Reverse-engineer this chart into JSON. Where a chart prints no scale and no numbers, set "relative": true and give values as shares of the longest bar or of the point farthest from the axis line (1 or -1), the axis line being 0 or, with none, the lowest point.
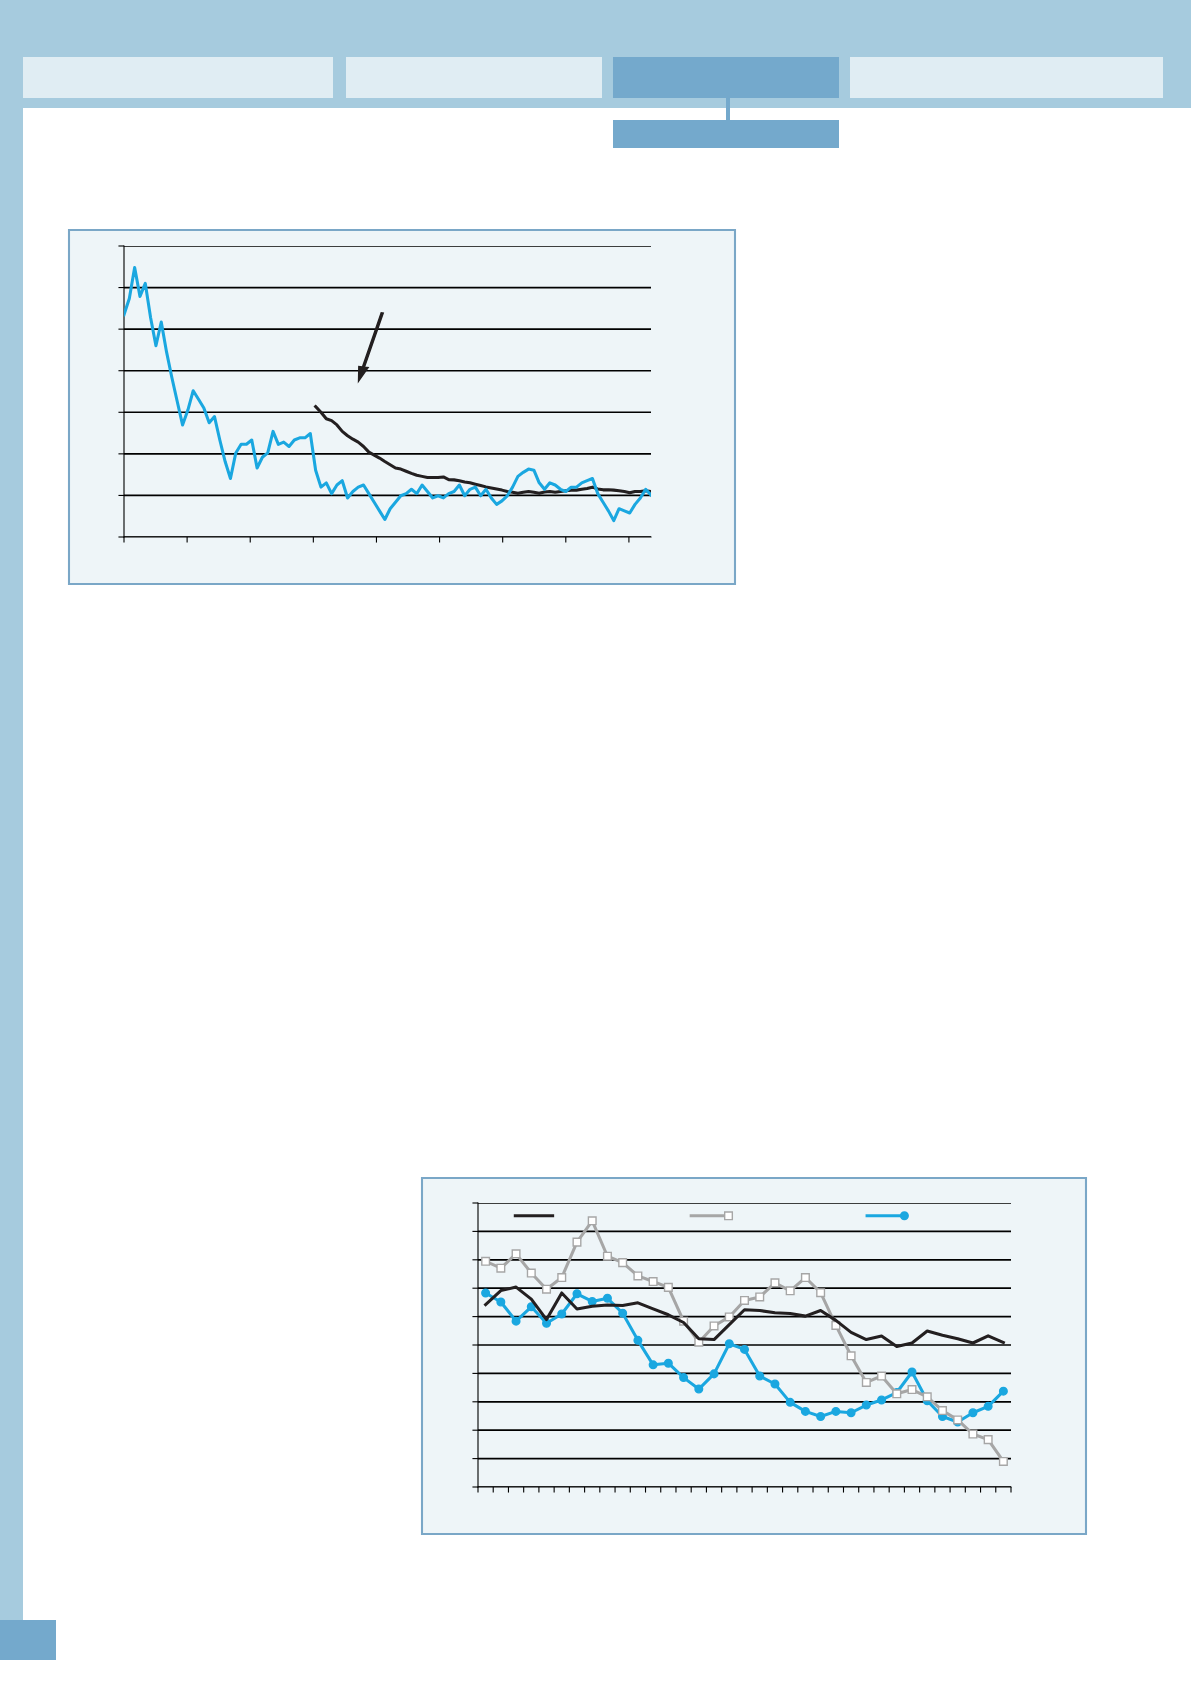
{
  "chart_data": [
    {
      "type": "line",
      "relative": true,
      "grid": "y",
      "tick_labels": false,
      "marker": "none",
      "line_style": "solid",
      "categories": [
        null,
        null,
        null,
        null,
        null,
        null,
        null,
        null,
        null,
        null,
        null,
        null,
        null,
        null,
        null,
        null,
        null,
        null,
        null,
        null,
        null,
        null,
        null,
        null,
        null,
        null,
        null,
        null,
        null,
        null,
        null,
        null,
        null,
        null,
        null,
        null,
        null,
        null,
        null,
        null,
        null,
        null,
        null,
        null,
        null,
        null,
        null,
        null,
        null,
        null,
        null,
        null,
        null,
        null,
        null,
        null,
        null,
        null,
        null,
        null,
        null,
        null,
        null,
        null,
        null,
        null,
        null,
        null,
        null,
        null,
        null,
        null,
        null,
        null,
        null,
        null,
        null,
        null,
        null,
        null,
        null,
        null,
        null,
        null,
        null,
        null,
        null,
        null,
        null,
        null,
        null,
        null,
        null,
        null,
        null,
        null,
        null,
        null,
        null,
        null
      ],
      "series": [
        {
          "color": "#1aa7e0",
          "values": [
            0.825,
            0.885,
            1.0,
            0.893,
            0.941,
            0.814,
            0.71,
            0.798,
            0.686,
            0.591,
            0.503,
            0.416,
            0.471,
            0.543,
            0.511,
            0.479,
            0.424,
            0.447,
            0.36,
            0.28,
            0.217,
            0.312,
            0.344,
            0.344,
            0.36,
            0.256,
            0.296,
            0.312,
            0.392,
            0.344,
            0.352,
            0.336,
            0.36,
            0.368,
            0.368,
            0.384,
            0.248,
            0.185,
            0.201,
            0.161,
            0.193,
            0.209,
            0.145,
            0.169,
            0.185,
            0.193,
            0.161,
            0.129,
            0.097,
            0.065,
            0.105,
            0.129,
            0.153,
            0.161,
            0.177,
            0.161,
            0.193,
            0.169,
            0.145,
            0.153,
            0.145,
            0.161,
            0.169,
            0.193,
            0.153,
            0.177,
            0.185,
            0.153,
            0.177,
            0.145,
            0.121,
            0.134,
            0.153,
            0.185,
            0.225,
            0.24,
            0.252,
            0.248,
            0.201,
            0.177,
            0.201,
            0.193,
            0.177,
            0.169,
            0.185,
            0.185,
            0.201,
            0.209,
            0.217,
            0.161,
            0.129,
            0.097,
            0.061,
            0.105,
            0.097,
            0.089,
            0.121,
            0.145,
            0.177,
            0.156
          ]
        },
        {
          "color": "#231f20",
          "values": [
            null,
            null,
            null,
            null,
            null,
            null,
            null,
            null,
            null,
            null,
            null,
            null,
            null,
            null,
            null,
            null,
            null,
            null,
            null,
            null,
            null,
            null,
            null,
            null,
            null,
            null,
            null,
            null,
            null,
            null,
            null,
            null,
            null,
            null,
            null,
            null,
            0.484,
            0.463,
            0.439,
            0.432,
            0.416,
            0.392,
            0.376,
            0.363,
            0.352,
            0.336,
            0.315,
            0.304,
            0.293,
            0.28,
            0.268,
            0.256,
            0.252,
            0.244,
            0.236,
            0.229,
            0.225,
            0.221,
            0.221,
            0.221,
            0.223,
            0.213,
            0.212,
            0.209,
            0.204,
            0.201,
            0.196,
            0.191,
            0.186,
            0.182,
            0.178,
            0.174,
            0.169,
            0.166,
            0.162,
            0.166,
            0.169,
            0.166,
            0.162,
            0.167,
            0.169,
            0.166,
            0.169,
            0.172,
            0.174,
            0.174,
            0.177,
            0.18,
            0.185,
            0.178,
            0.175,
            0.175,
            0.174,
            0.172,
            0.169,
            0.164,
            0.169,
            0.169,
            0.172,
            0.169
          ]
        }
      ]
    },
    {
      "type": "line",
      "relative": true,
      "grid": "y",
      "tick_labels": false,
      "line_style": "solid",
      "categories": [
        null,
        null,
        null,
        null,
        null,
        null,
        null,
        null,
        null,
        null,
        null,
        null,
        null,
        null,
        null,
        null,
        null,
        null,
        null,
        null,
        null,
        null,
        null,
        null,
        null,
        null,
        null,
        null,
        null,
        null,
        null,
        null,
        null,
        null,
        null
      ],
      "series": [
        {
          "color": "#231f20",
          "marker": "none",
          "values": [
            0.685,
            0.738,
            0.751,
            0.706,
            0.629,
            0.729,
            0.669,
            0.679,
            0.684,
            0.682,
            0.692,
            0.669,
            0.647,
            0.618,
            0.557,
            0.554,
            0.61,
            0.666,
            0.663,
            0.655,
            0.652,
            0.642,
            0.663,
            0.626,
            0.581,
            0.554,
            0.567,
            0.528,
            0.541,
            0.586,
            0.57,
            0.557,
            0.541,
            0.568,
            0.543
          ]
        },
        {
          "color": "#a6a6a6",
          "marker": "square",
          "values": [
            0.848,
            0.822,
            0.876,
            0.804,
            0.743,
            0.787,
            0.92,
            1.0,
            0.867,
            0.843,
            0.793,
            0.772,
            0.75,
            0.623,
            0.544,
            0.605,
            0.639,
            0.701,
            0.714,
            0.767,
            0.737,
            0.787,
            0.73,
            0.607,
            0.493,
            0.393,
            0.417,
            0.35,
            0.366,
            0.339,
            0.287,
            0.252,
            0.199,
            0.178,
            0.096
          ]
        },
        {
          "color": "#1aa7e0",
          "marker": "circle",
          "values": [
            0.729,
            0.695,
            0.623,
            0.677,
            0.615,
            0.65,
            0.726,
            0.697,
            0.709,
            0.653,
            0.551,
            0.459,
            0.465,
            0.411,
            0.368,
            0.425,
            0.538,
            0.517,
            0.417,
            0.387,
            0.318,
            0.284,
            0.265,
            0.284,
            0.279,
            0.308,
            0.327,
            0.355,
            0.432,
            0.324,
            0.265,
            0.244,
            0.279,
            0.303,
            0.36
          ]
        }
      ]
    }
  ]
}
